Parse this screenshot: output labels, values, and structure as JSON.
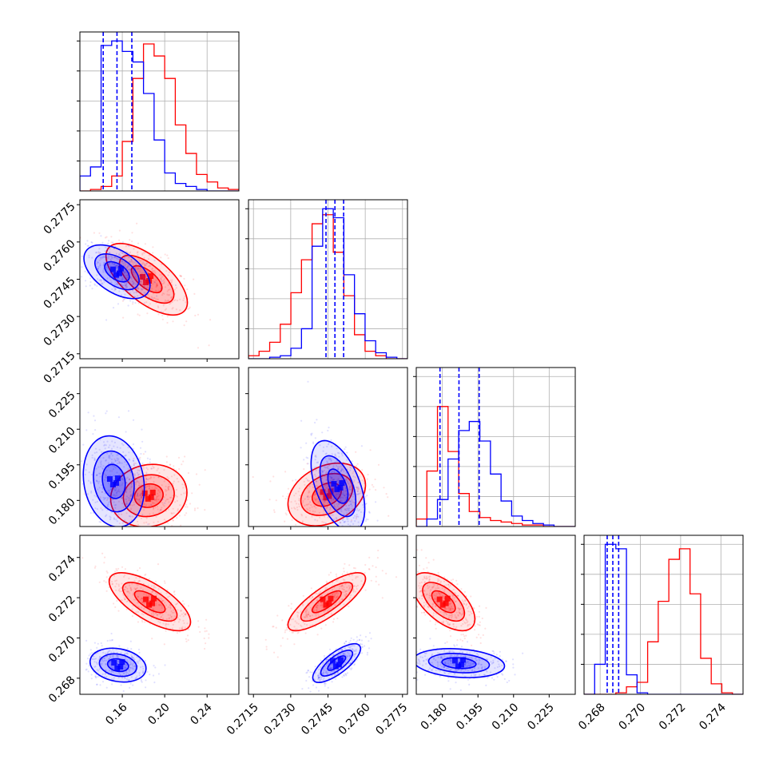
{
  "chart_data": {
    "type": "corner",
    "colors": {
      "blue": "#0000ff",
      "red": "#ff0000",
      "grid": "#b0b0b0"
    },
    "params": [
      {
        "range": [
          0.12,
          0.27
        ],
        "ticks": [
          "0.16",
          "0.20",
          "0.24"
        ],
        "tick_values": [
          0.16,
          0.2,
          0.24
        ]
      },
      {
        "range": [
          0.2713,
          0.2777
        ],
        "ticks": [
          "0.2715",
          "0.2730",
          "0.2745",
          "0.2760",
          "0.2775"
        ],
        "tick_values": [
          0.2715,
          0.273,
          0.2745,
          0.276,
          0.2775
        ]
      },
      {
        "range": [
          0.169,
          0.236
        ],
        "ticks": [
          "0.180",
          "0.195",
          "0.210",
          "0.225"
        ],
        "tick_values": [
          0.18,
          0.195,
          0.21,
          0.225
        ]
      },
      {
        "range": [
          0.2672,
          0.2751
        ],
        "ticks": [
          "0.268",
          "0.270",
          "0.272",
          "0.274"
        ],
        "tick_values": [
          0.268,
          0.27,
          0.272,
          0.274
        ]
      }
    ],
    "quantiles": [
      [
        0.142,
        0.155,
        0.169
      ],
      [
        0.27442,
        0.27478,
        0.27513
      ],
      [
        0.179,
        0.187,
        0.1955
      ],
      [
        0.26835,
        0.26863,
        0.26892
      ]
    ],
    "hist1d": [
      {
        "blue": [
          0.1,
          0.16,
          0.97,
          1.0,
          0.93,
          0.86,
          0.65,
          0.34,
          0.12,
          0.05,
          0.03,
          0.01,
          0.0,
          0.0,
          0.0
        ],
        "red": [
          0.0,
          0.01,
          0.03,
          0.1,
          0.33,
          0.75,
          0.98,
          0.9,
          0.75,
          0.44,
          0.25,
          0.11,
          0.06,
          0.02,
          0.01
        ]
      },
      {
        "blue": [
          0.0,
          0.0,
          0.01,
          0.02,
          0.07,
          0.2,
          0.75,
          1.0,
          0.94,
          0.56,
          0.3,
          0.12,
          0.04,
          0.01,
          0.0
        ],
        "red": [
          0.02,
          0.05,
          0.11,
          0.23,
          0.44,
          0.66,
          0.9,
          0.96,
          0.71,
          0.42,
          0.16,
          0.05,
          0.02,
          0.0,
          0.0
        ]
      },
      {
        "blue": [
          0.0,
          0.05,
          0.18,
          0.45,
          0.64,
          0.7,
          0.57,
          0.35,
          0.17,
          0.07,
          0.04,
          0.02,
          0.01,
          0.0,
          0.0
        ],
        "red": [
          0.05,
          0.37,
          0.8,
          0.5,
          0.22,
          0.1,
          0.06,
          0.04,
          0.03,
          0.02,
          0.01,
          0.01,
          0.0,
          0.0,
          0.0
        ]
      },
      {
        "blue": [
          0.0,
          0.2,
          1.0,
          0.97,
          0.13,
          0.01,
          0.0,
          0.0,
          0.0,
          0.0,
          0.0,
          0.0,
          0.0,
          0.0,
          0.0
        ],
        "red": [
          0.0,
          0.0,
          0.0,
          0.01,
          0.05,
          0.08,
          0.35,
          0.62,
          0.9,
          0.97,
          0.67,
          0.24,
          0.07,
          0.01,
          0.0
        ]
      }
    ],
    "pairs": [
      {
        "row": 1,
        "col": 0,
        "blue": {
          "mean": [
            0.155,
            0.2748
          ],
          "sd": [
            0.013,
            0.00045
          ],
          "rho": -0.5
        },
        "red": {
          "mean": [
            0.183,
            0.2745
          ],
          "sd": [
            0.016,
            0.0006
          ],
          "rho": -0.65
        }
      },
      {
        "row": 2,
        "col": 0,
        "blue": {
          "mean": [
            0.152,
            0.188
          ],
          "sd": [
            0.012,
            0.008
          ],
          "rho": -0.15
        },
        "red": {
          "mean": [
            0.185,
            0.182
          ],
          "sd": [
            0.015,
            0.0055
          ],
          "rho": 0.1
        }
      },
      {
        "row": 2,
        "col": 1,
        "blue": {
          "mean": [
            0.2749,
            0.186
          ],
          "sd": [
            0.00045,
            0.008
          ],
          "rho": -0.5
        },
        "red": {
          "mean": [
            0.27445,
            0.1825
          ],
          "sd": [
            0.00065,
            0.0055
          ],
          "rho": 0.3
        }
      },
      {
        "row": 3,
        "col": 0,
        "blue": {
          "mean": [
            0.156,
            0.26865
          ],
          "sd": [
            0.011,
            0.00035
          ],
          "rho": -0.2
        },
        "red": {
          "mean": [
            0.186,
            0.2718
          ],
          "sd": [
            0.016,
            0.0006
          ],
          "rho": -0.7
        }
      },
      {
        "row": 3,
        "col": 1,
        "blue": {
          "mean": [
            0.27485,
            0.26875
          ],
          "sd": [
            0.0004,
            0.0004
          ],
          "rho": 0.75
        },
        "red": {
          "mean": [
            0.27445,
            0.2718
          ],
          "sd": [
            0.00065,
            0.0006
          ],
          "rho": 0.8
        }
      },
      {
        "row": 3,
        "col": 2,
        "blue": {
          "mean": [
            0.187,
            0.26875
          ],
          "sd": [
            0.008,
            0.0003
          ],
          "rho": -0.2
        },
        "red": {
          "mean": [
            0.1805,
            0.2718
          ],
          "sd": [
            0.0055,
            0.0006
          ],
          "rho": -0.6
        }
      }
    ]
  }
}
